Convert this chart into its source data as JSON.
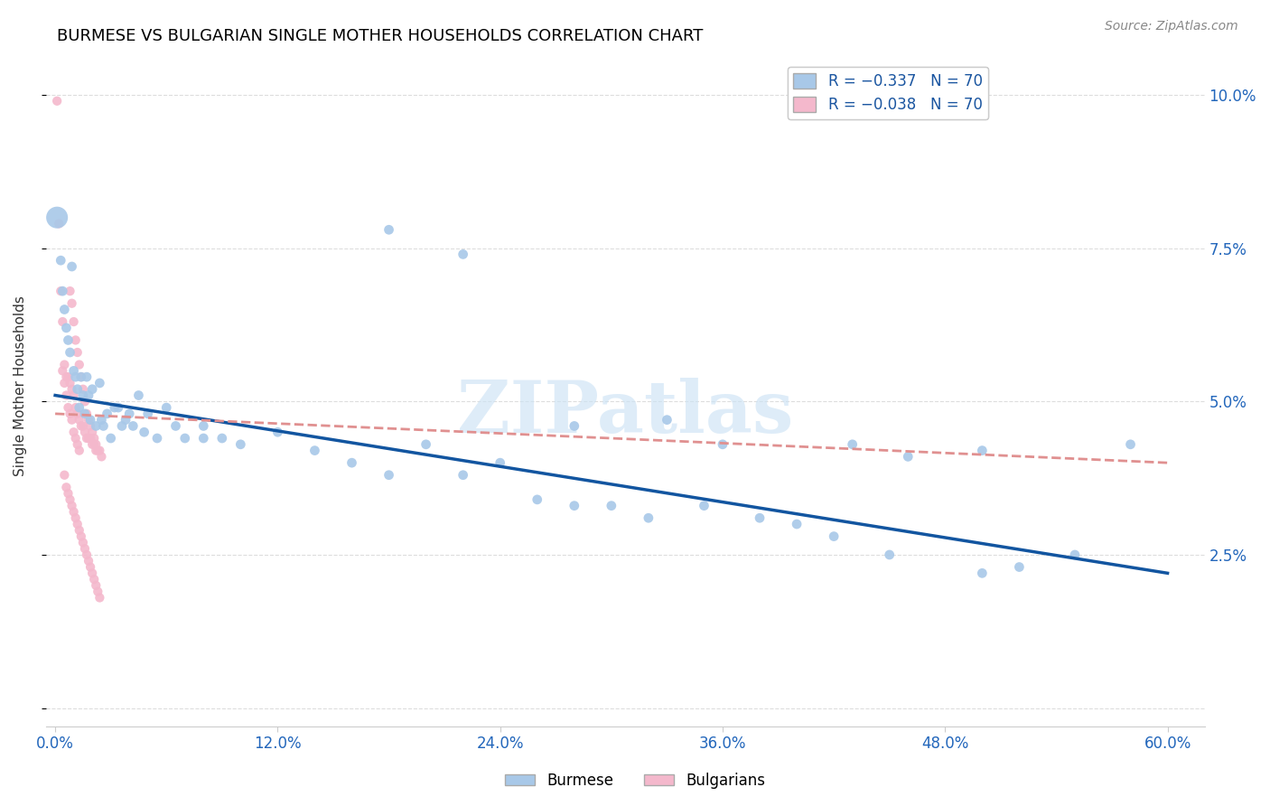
{
  "title": "BURMESE VS BULGARIAN SINGLE MOTHER HOUSEHOLDS CORRELATION CHART",
  "source": "Source: ZipAtlas.com",
  "ylabel": "Single Mother Households",
  "yticks": [
    0.0,
    0.025,
    0.05,
    0.075,
    0.1
  ],
  "ytick_labels_right": [
    "",
    "2.5%",
    "5.0%",
    "7.5%",
    "10.0%"
  ],
  "xticks": [
    0.0,
    0.12,
    0.24,
    0.36,
    0.48,
    0.6
  ],
  "xtick_labels": [
    "0.0%",
    "12.0%",
    "24.0%",
    "36.0%",
    "48.0%",
    "60.0%"
  ],
  "watermark_text": "ZIPatlas",
  "burmese_color": "#a8c8e8",
  "bulgarian_color": "#f4b8cc",
  "burmese_line_color": "#1255a0",
  "bulgarian_line_color": "#e09090",
  "legend_label1": "R = −0.337   N = 70",
  "legend_label2": "R = −0.038   N = 70",
  "legend_burmese": "Burmese",
  "legend_bulgarian": "Bulgarians",
  "burmese_line_x0": 0.0,
  "burmese_line_x1": 0.6,
  "burmese_line_y0": 0.051,
  "burmese_line_y1": 0.022,
  "bulgarian_line_x0": 0.0,
  "bulgarian_line_x1": 0.6,
  "bulgarian_line_y0": 0.048,
  "bulgarian_line_y1": 0.04,
  "xlim": [
    -0.005,
    0.62
  ],
  "ylim": [
    -0.003,
    0.108
  ],
  "burmese_x": [
    0.001,
    0.003,
    0.004,
    0.005,
    0.006,
    0.007,
    0.008,
    0.009,
    0.01,
    0.011,
    0.012,
    0.013,
    0.014,
    0.015,
    0.016,
    0.017,
    0.018,
    0.019,
    0.02,
    0.022,
    0.024,
    0.025,
    0.026,
    0.028,
    0.03,
    0.032,
    0.034,
    0.036,
    0.038,
    0.04,
    0.042,
    0.045,
    0.048,
    0.05,
    0.055,
    0.06,
    0.065,
    0.07,
    0.08,
    0.09,
    0.1,
    0.12,
    0.14,
    0.16,
    0.18,
    0.2,
    0.22,
    0.24,
    0.26,
    0.28,
    0.3,
    0.32,
    0.35,
    0.38,
    0.4,
    0.42,
    0.45,
    0.5,
    0.52,
    0.55,
    0.28,
    0.33,
    0.36,
    0.43,
    0.46,
    0.5,
    0.18,
    0.22,
    0.58,
    0.08
  ],
  "burmese_y": [
    0.08,
    0.073,
    0.068,
    0.065,
    0.062,
    0.06,
    0.058,
    0.072,
    0.055,
    0.054,
    0.052,
    0.049,
    0.054,
    0.051,
    0.048,
    0.054,
    0.051,
    0.047,
    0.052,
    0.046,
    0.053,
    0.047,
    0.046,
    0.048,
    0.044,
    0.049,
    0.049,
    0.046,
    0.047,
    0.048,
    0.046,
    0.051,
    0.045,
    0.048,
    0.044,
    0.049,
    0.046,
    0.044,
    0.046,
    0.044,
    0.043,
    0.045,
    0.042,
    0.04,
    0.038,
    0.043,
    0.038,
    0.04,
    0.034,
    0.033,
    0.033,
    0.031,
    0.033,
    0.031,
    0.03,
    0.028,
    0.025,
    0.022,
    0.023,
    0.025,
    0.046,
    0.047,
    0.043,
    0.043,
    0.041,
    0.042,
    0.078,
    0.074,
    0.043,
    0.044
  ],
  "burmese_sizes": [
    300,
    60,
    60,
    60,
    60,
    60,
    60,
    60,
    60,
    60,
    60,
    60,
    60,
    60,
    60,
    60,
    60,
    60,
    60,
    60,
    60,
    60,
    60,
    60,
    60,
    60,
    60,
    60,
    60,
    60,
    60,
    60,
    60,
    60,
    60,
    60,
    60,
    60,
    60,
    60,
    60,
    60,
    60,
    60,
    60,
    60,
    60,
    60,
    60,
    60,
    60,
    60,
    60,
    60,
    60,
    60,
    60,
    60,
    60,
    60,
    60,
    60,
    60,
    60,
    60,
    60,
    60,
    60,
    60,
    60
  ],
  "bulgarian_x": [
    0.001,
    0.002,
    0.003,
    0.004,
    0.005,
    0.006,
    0.007,
    0.008,
    0.009,
    0.01,
    0.011,
    0.012,
    0.013,
    0.014,
    0.015,
    0.016,
    0.017,
    0.018,
    0.019,
    0.02,
    0.021,
    0.022,
    0.023,
    0.024,
    0.025,
    0.008,
    0.009,
    0.01,
    0.011,
    0.012,
    0.013,
    0.014,
    0.015,
    0.016,
    0.017,
    0.018,
    0.019,
    0.02,
    0.021,
    0.022,
    0.005,
    0.006,
    0.007,
    0.008,
    0.009,
    0.01,
    0.011,
    0.012,
    0.013,
    0.014,
    0.015,
    0.016,
    0.017,
    0.018,
    0.019,
    0.02,
    0.021,
    0.022,
    0.023,
    0.024,
    0.004,
    0.005,
    0.006,
    0.007,
    0.008,
    0.009,
    0.01,
    0.011,
    0.012,
    0.013
  ],
  "bulgarian_y": [
    0.099,
    0.079,
    0.068,
    0.063,
    0.056,
    0.054,
    0.054,
    0.053,
    0.052,
    0.051,
    0.049,
    0.048,
    0.047,
    0.046,
    0.046,
    0.045,
    0.044,
    0.044,
    0.044,
    0.043,
    0.043,
    0.042,
    0.042,
    0.042,
    0.041,
    0.068,
    0.066,
    0.063,
    0.06,
    0.058,
    0.056,
    0.054,
    0.052,
    0.05,
    0.048,
    0.047,
    0.046,
    0.045,
    0.044,
    0.043,
    0.038,
    0.036,
    0.035,
    0.034,
    0.033,
    0.032,
    0.031,
    0.03,
    0.029,
    0.028,
    0.027,
    0.026,
    0.025,
    0.024,
    0.023,
    0.022,
    0.021,
    0.02,
    0.019,
    0.018,
    0.055,
    0.053,
    0.051,
    0.049,
    0.048,
    0.047,
    0.045,
    0.044,
    0.043,
    0.042
  ]
}
